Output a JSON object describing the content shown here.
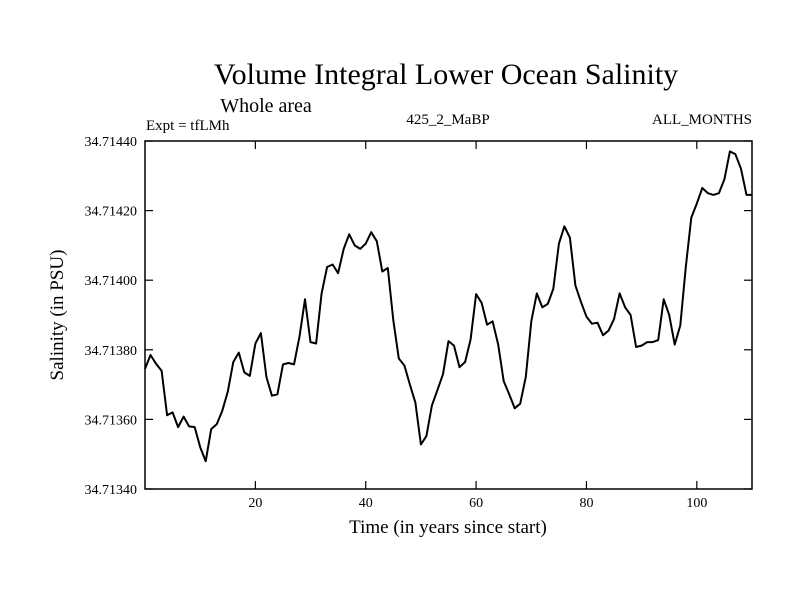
{
  "chart_data": {
    "type": "line",
    "title": "Volume Integral Lower Ocean Salinity",
    "subtitle": "Whole area",
    "annotations": {
      "experiment": "Expt = tfLMh",
      "period": "425_2_MaBP",
      "months": "ALL_MONTHS"
    },
    "xlabel": "Time (in years since start)",
    "ylabel": "Salinity (in PSU)",
    "xlim": [
      0,
      110
    ],
    "ylim": [
      34.7134,
      34.7144
    ],
    "x_ticks": [
      20,
      40,
      60,
      80,
      100
    ],
    "y_ticks": [
      "34.71340",
      "34.71360",
      "34.71380",
      "34.71400",
      "34.71420",
      "34.71440"
    ],
    "grid": false,
    "series": [
      {
        "name": "Salinity",
        "color": "#000000",
        "x": [
          0,
          1,
          2,
          3,
          4,
          5,
          6,
          7,
          8,
          9,
          10,
          11,
          12,
          13,
          14,
          15,
          16,
          17,
          18,
          19,
          20,
          21,
          22,
          23,
          24,
          25,
          26,
          27,
          28,
          29,
          30,
          31,
          32,
          33,
          34,
          35,
          36,
          37,
          38,
          39,
          40,
          41,
          42,
          43,
          44,
          45,
          46,
          47,
          48,
          49,
          50,
          51,
          52,
          53,
          54,
          55,
          56,
          57,
          58,
          59,
          60,
          61,
          62,
          63,
          64,
          65,
          66,
          67,
          68,
          69,
          70,
          71,
          72,
          73,
          74,
          75,
          76,
          77,
          78,
          79,
          80,
          81,
          82,
          83,
          84,
          85,
          86,
          87,
          88,
          89,
          90,
          91,
          92,
          93,
          94,
          95,
          96,
          97,
          98,
          99,
          100,
          101,
          102,
          103,
          104,
          105,
          106,
          107,
          108,
          109,
          110
        ],
        "values": [
          34.713745,
          34.713785,
          34.71376,
          34.71374,
          34.713612,
          34.71362,
          34.713578,
          34.713608,
          34.71358,
          34.713578,
          34.71352,
          34.71348,
          34.713572,
          34.713586,
          34.713625,
          34.71368,
          34.713765,
          34.713792,
          34.713735,
          34.713725,
          34.713818,
          34.713848,
          34.713722,
          34.713668,
          34.713672,
          34.713758,
          34.713762,
          34.713758,
          34.713838,
          34.713945,
          34.713822,
          34.713818,
          34.713962,
          34.714038,
          34.714045,
          34.71402,
          34.71409,
          34.714132,
          34.7141,
          34.71409,
          34.714105,
          34.714138,
          34.714112,
          34.714025,
          34.714035,
          34.713885,
          34.713775,
          34.713755,
          34.7137,
          34.713648,
          34.713528,
          34.713552,
          34.71364,
          34.713685,
          34.71373,
          34.713825,
          34.713812,
          34.71375,
          34.713765,
          34.71383,
          34.71396,
          34.713935,
          34.713872,
          34.713882,
          34.713815,
          34.71371,
          34.713672,
          34.713632,
          34.713645,
          34.713722,
          34.713882,
          34.713962,
          34.713922,
          34.713932,
          34.713975,
          34.714105,
          34.714155,
          34.714122,
          34.713985,
          34.713938,
          34.713895,
          34.713875,
          34.713878,
          34.713842,
          34.713855,
          34.713888,
          34.713962,
          34.713922,
          34.7139,
          34.713808,
          34.713812,
          34.713822,
          34.713822,
          34.713828,
          34.713945,
          34.7139,
          34.713815,
          34.71387,
          34.714038,
          34.71418,
          34.71422,
          34.714265,
          34.71425,
          34.714245,
          34.71425,
          34.71429,
          34.71437,
          34.714362,
          34.71432,
          34.714245,
          34.714245
        ]
      }
    ]
  }
}
